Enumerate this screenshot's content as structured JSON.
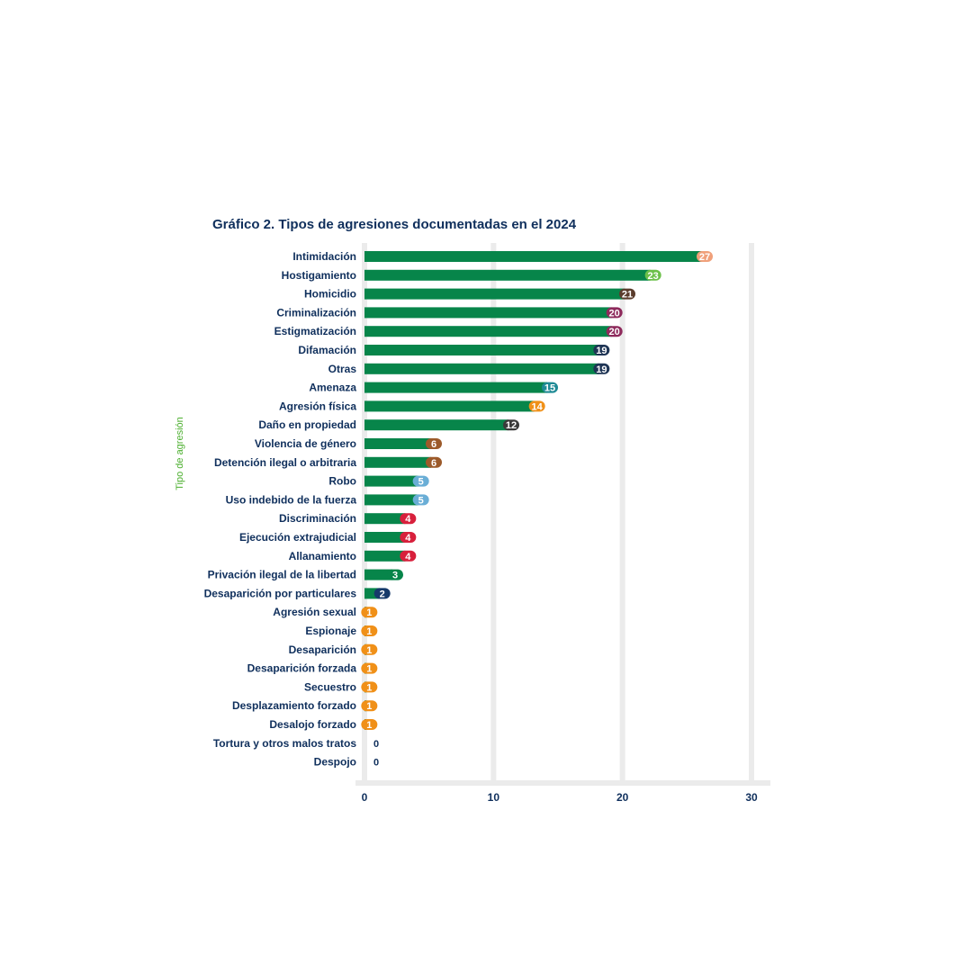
{
  "chart_data": {
    "type": "bar",
    "orientation": "horizontal",
    "title": "Gráfico 2. Tipos de agresiones documentadas en el 2024",
    "ylabel": "Tipo de agresión",
    "xlabel": "",
    "xlim": [
      0,
      30
    ],
    "xticks": [
      0,
      10,
      20,
      30
    ],
    "grid": true,
    "bar_color": "#07854a",
    "categories": [
      "Intimidación",
      "Hostigamiento",
      "Homicidio",
      "Criminalización",
      "Estigmatización",
      "Difamación",
      "Otras",
      "Amenaza",
      "Agresión física",
      "Daño en propiedad",
      "Violencia de género",
      "Detención ilegal o arbitraria",
      "Robo",
      "Uso indebido de la fuerza",
      "Discriminación",
      "Ejecución extrajudicial",
      "Allanamiento",
      "Privación ilegal de la libertad",
      "Desaparición por particulares",
      "Agresión sexual",
      "Espionaje",
      "Desaparición",
      "Desaparición forzada",
      "Secuestro",
      "Desplazamiento forzado",
      "Desalojo forzado",
      "Tortura y otros malos tratos",
      "Despojo"
    ],
    "values": [
      27,
      23,
      21,
      20,
      20,
      19,
      19,
      15,
      14,
      12,
      6,
      6,
      5,
      5,
      4,
      4,
      4,
      3,
      2,
      1,
      1,
      1,
      1,
      1,
      1,
      1,
      0,
      0
    ],
    "cap_colors": [
      "#f0a07a",
      "#6cc04a",
      "#5a3c2c",
      "#8e2a5c",
      "#8e2a5c",
      "#1f3555",
      "#1f3555",
      "#1f8a95",
      "#f09018",
      "#3a3a3a",
      "#9c5a2a",
      "#9c5a2a",
      "#6aaed6",
      "#6aaed6",
      "#d8203c",
      "#d8203c",
      "#d8203c",
      "#07854a",
      "#163a6a",
      "#f09018",
      "#f09018",
      "#f09018",
      "#f09018",
      "#f09018",
      "#f09018",
      "#f09018",
      "",
      ""
    ]
  }
}
